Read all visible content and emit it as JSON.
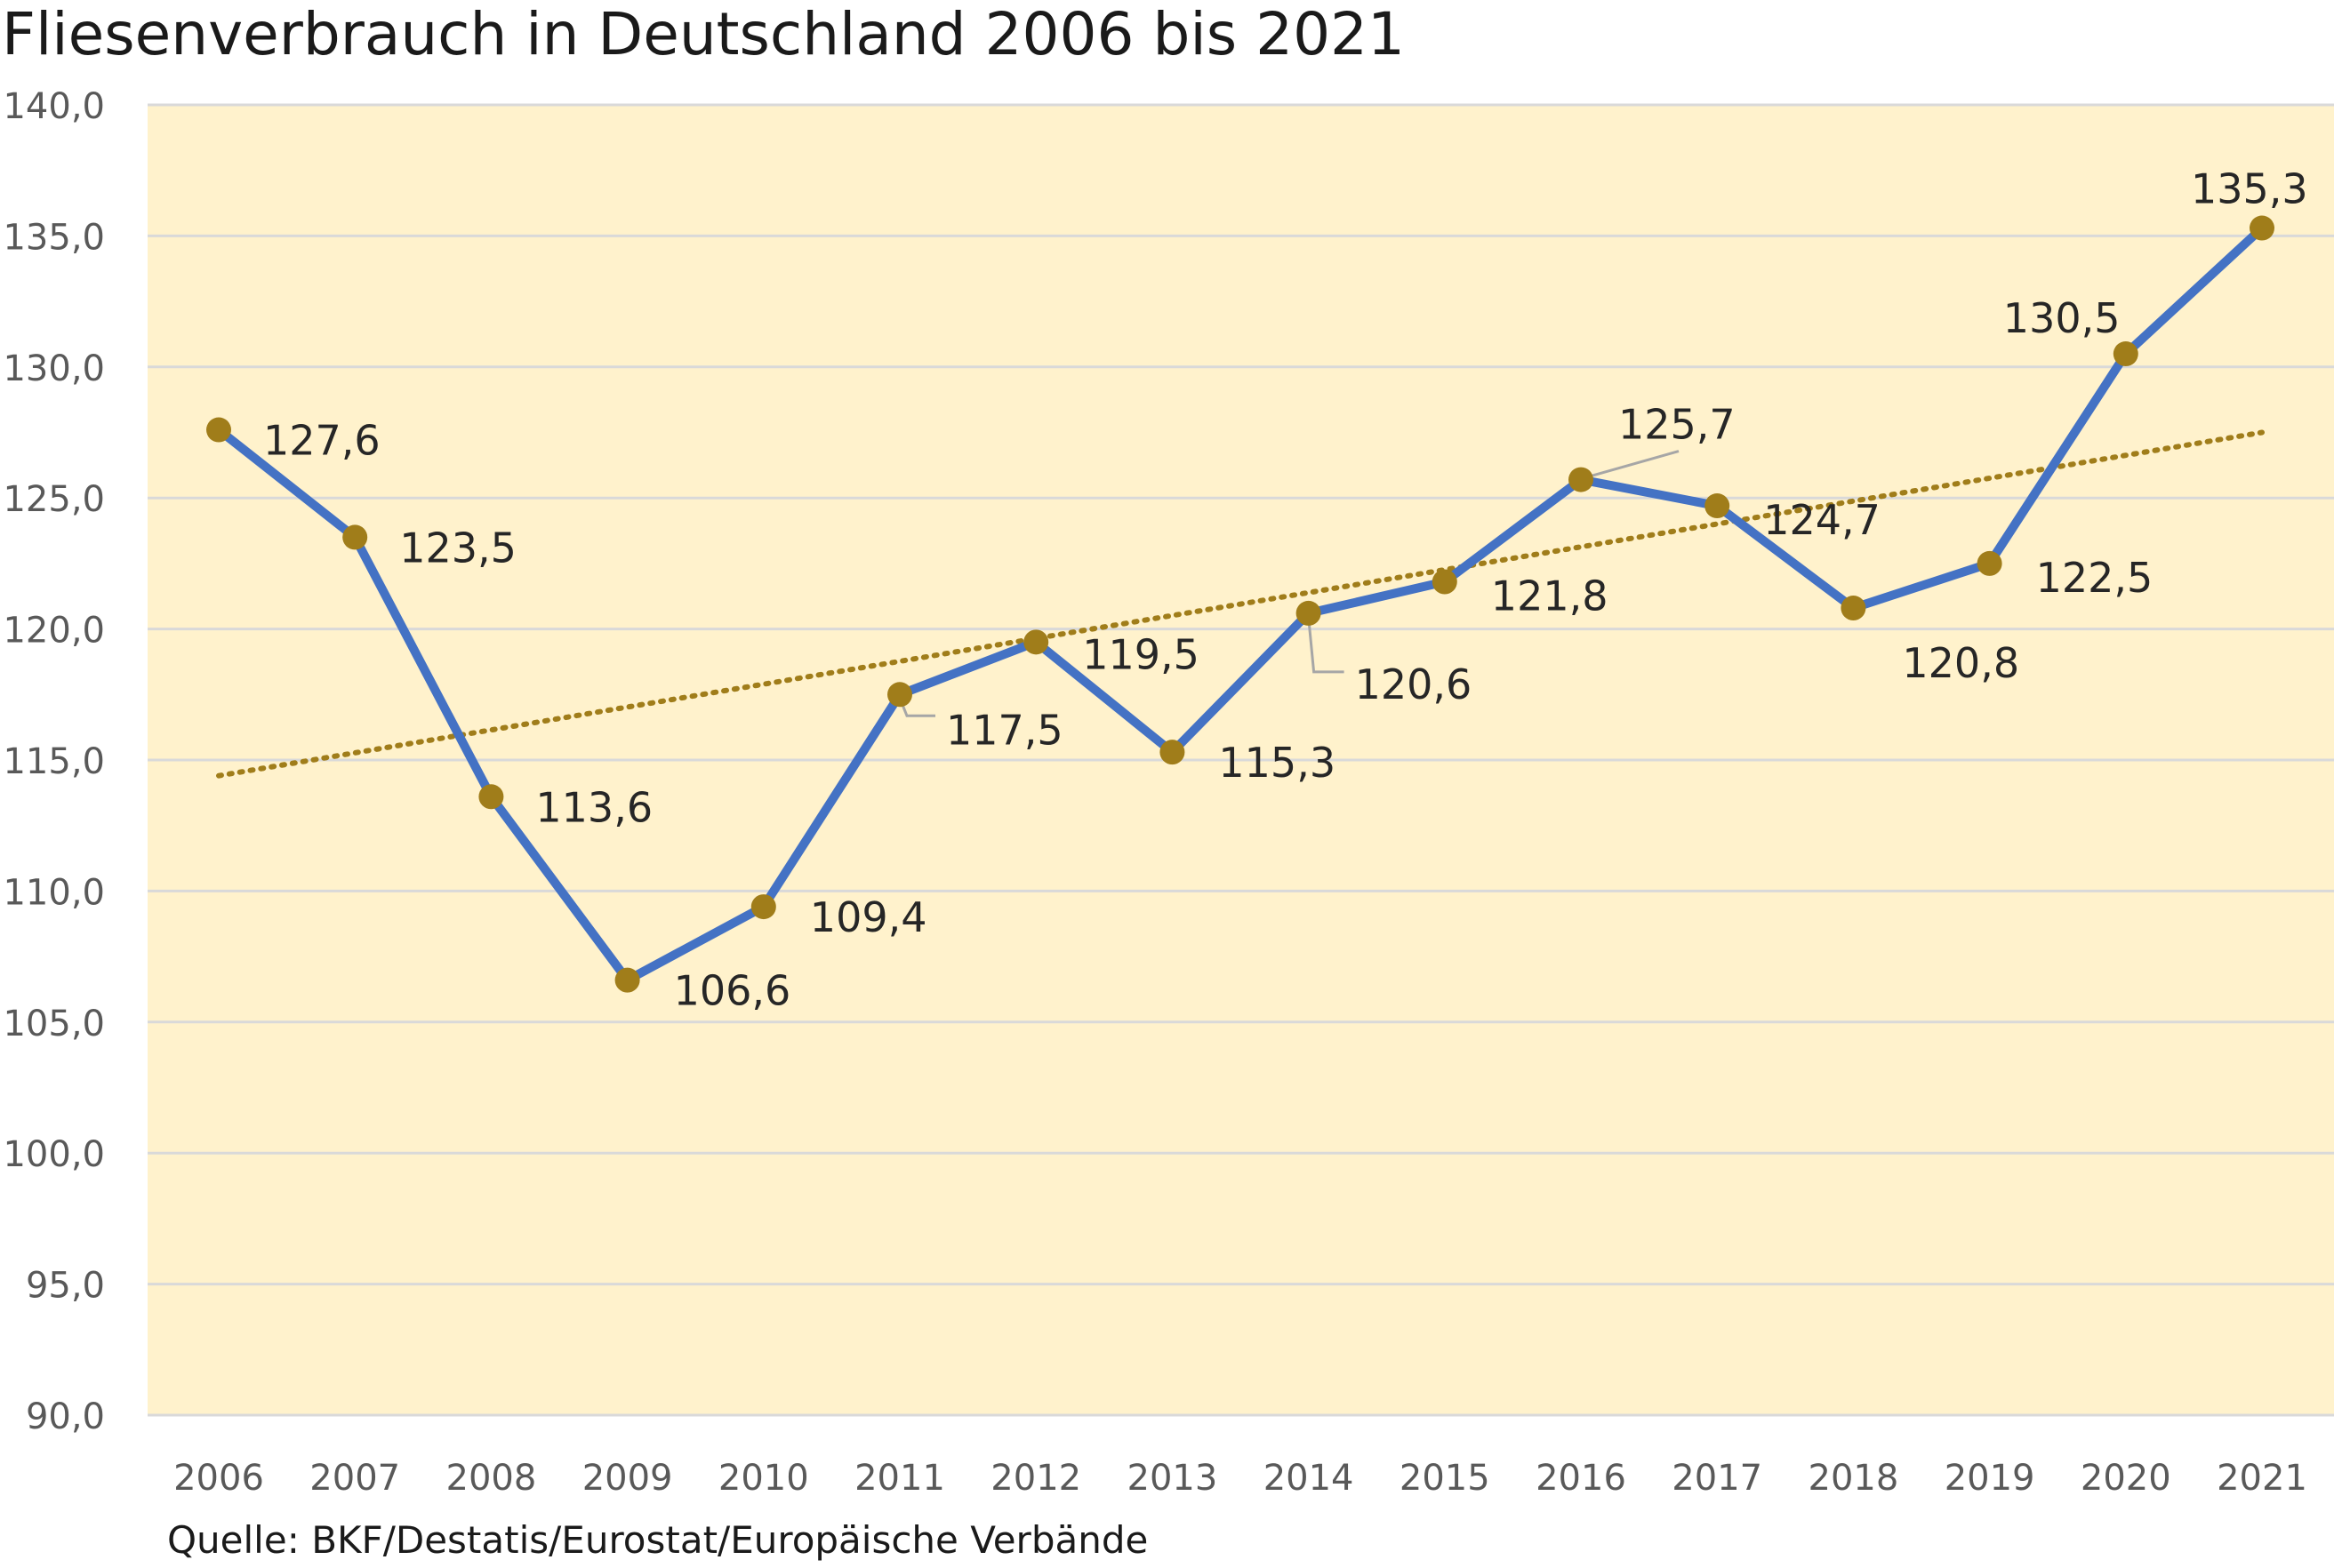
{
  "title": "Fliesenverbrauch in Deutschland 2006 bis 2021",
  "source": "Quelle: BKF/Destatis/Eurostat/Europäische Verbände",
  "colors": {
    "plot_background": "#fff2cc",
    "line": "#4472c4",
    "marker": "#a07d1a",
    "trendline": "#a07d1a",
    "gridline": "#d9d9d9",
    "axis_text": "#595959",
    "label_text": "#262626",
    "leader_line": "#a6a6a6"
  },
  "chart_data": {
    "type": "line",
    "title": "Fliesenverbrauch in Deutschland 2006 bis 2021",
    "xlabel": "",
    "ylabel": "",
    "ylim": [
      90,
      140
    ],
    "y_ticks": [
      90,
      95,
      100,
      105,
      110,
      115,
      120,
      125,
      130,
      135,
      140
    ],
    "y_tick_labels": [
      "90,0",
      "95,0",
      "100,0",
      "105,0",
      "110,0",
      "115,0",
      "120,0",
      "125,0",
      "130,0",
      "135,0",
      "140,0"
    ],
    "categories": [
      "2006",
      "2007",
      "2008",
      "2009",
      "2010",
      "2011",
      "2012",
      "2013",
      "2014",
      "2015",
      "2016",
      "2017",
      "2018",
      "2019",
      "2020",
      "2021"
    ],
    "series": [
      {
        "values": [
          127.6,
          123.5,
          113.6,
          106.6,
          109.4,
          117.5,
          119.5,
          115.3,
          120.6,
          121.8,
          125.7,
          124.7,
          120.8,
          122.5,
          130.5,
          135.3
        ],
        "data_labels": [
          "127,6",
          "123,5",
          "113,6",
          "106,6",
          "109,4",
          "117,5",
          "119,5",
          "115,3",
          "120,6",
          "121,8",
          "125,7",
          "124,7",
          "120,8",
          "122,5",
          "130,5",
          "135,3"
        ]
      }
    ],
    "trendline": {
      "type": "linear",
      "style": "dotted",
      "start_value": 114.4,
      "end_value": 127.5
    },
    "grid": true,
    "legend": "none"
  }
}
